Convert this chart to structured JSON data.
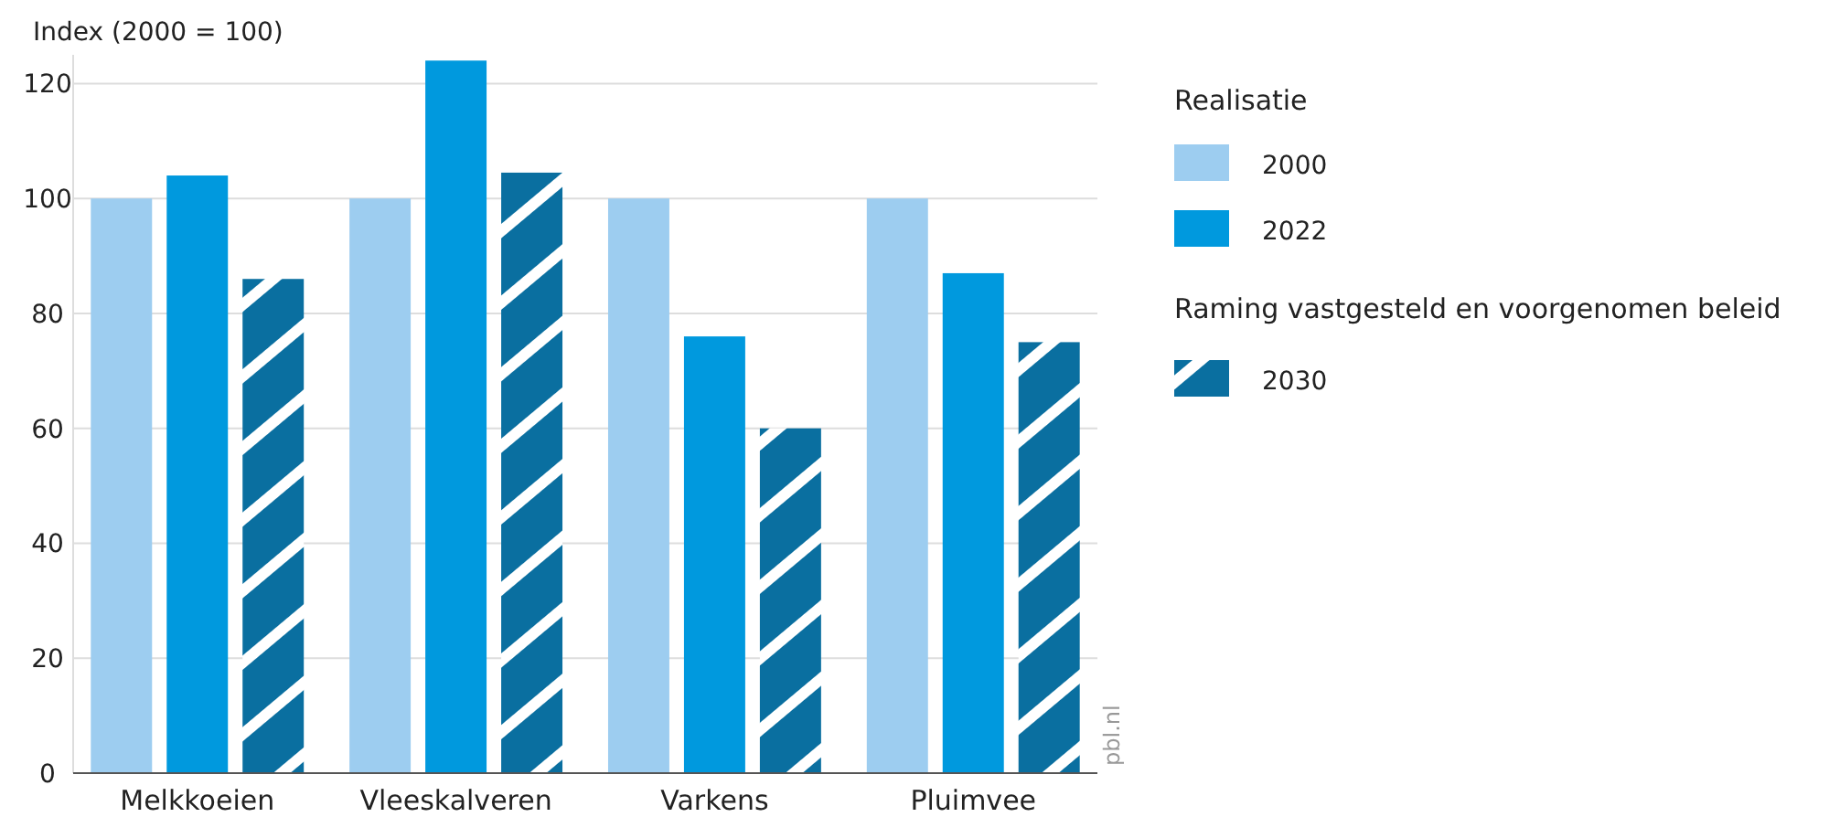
{
  "chart_data": {
    "type": "bar",
    "ylabel": "Index (2000 = 100)",
    "categories": [
      "Melkkoeien",
      "Vleeskalveren",
      "Varkens",
      "Pluimvee"
    ],
    "series": [
      {
        "name": "2000",
        "color": "#9dcdf0",
        "values": [
          100,
          100,
          100,
          100
        ]
      },
      {
        "name": "2022",
        "color": "#0099de",
        "values": [
          104,
          124,
          76,
          87
        ]
      },
      {
        "name": "2030",
        "color": "#0a6fa0",
        "values": [
          86,
          104.5,
          60,
          75
        ]
      }
    ],
    "ylim": [
      0,
      125
    ],
    "yticks": [
      0,
      20,
      40,
      60,
      80,
      100,
      120
    ],
    "grid": "y",
    "legend": "right",
    "legend_title": "Realisatie",
    "annotations": [
      "Raming vastgesteld en voorgenomen beleid",
      "pbl.nl"
    ]
  }
}
